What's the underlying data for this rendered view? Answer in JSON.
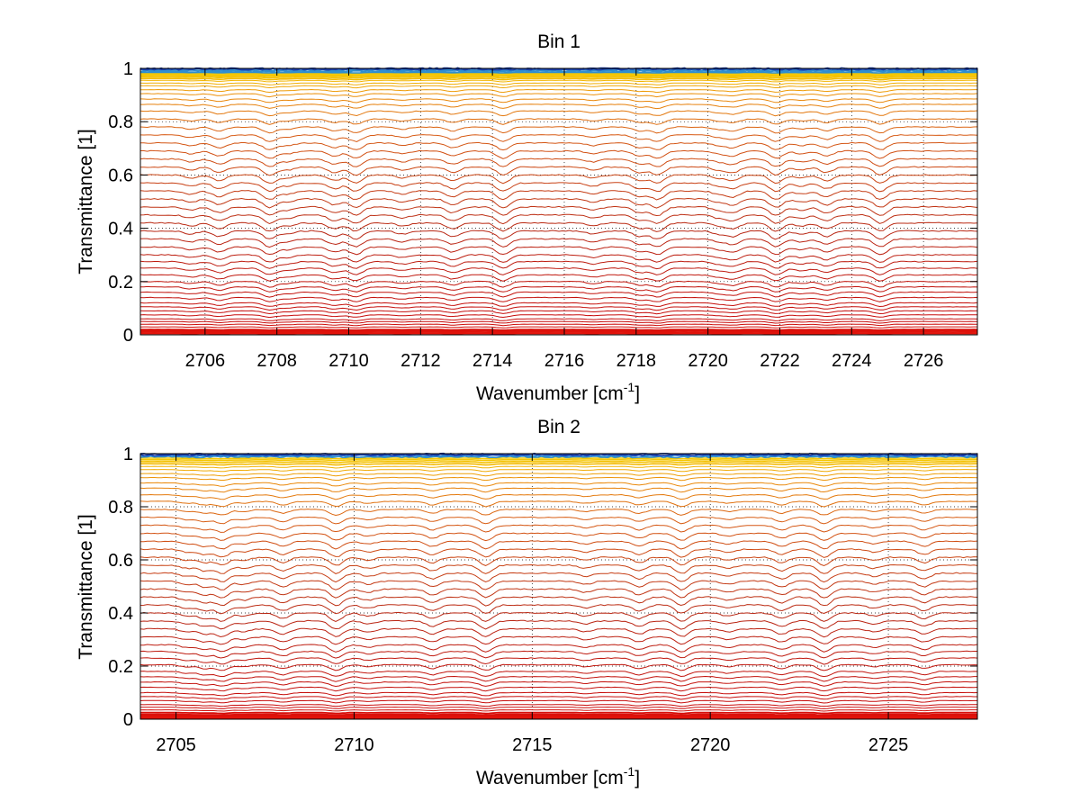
{
  "chart_data": [
    {
      "type": "line",
      "title": "Bin 1",
      "xlabel": "Wavenumber [cm",
      "xlabel_sup": "-1",
      "xlabel_suffix": "]",
      "ylabel": "Transmittance [1]",
      "xlim": [
        2704.2,
        2727.5
      ],
      "ylim": [
        0,
        1
      ],
      "xticks": [
        2706,
        2708,
        2710,
        2712,
        2714,
        2716,
        2718,
        2720,
        2722,
        2724,
        2726
      ],
      "xtick_labels": [
        "2706",
        "2708",
        "2710",
        "2712",
        "2714",
        "2716",
        "2718",
        "2720",
        "2722",
        "2724",
        "2726"
      ],
      "yticks": [
        0,
        0.2,
        0.4,
        0.6,
        0.8,
        1
      ],
      "ytick_labels": [
        "0",
        "0.2",
        "0.4",
        "0.6",
        "0.8",
        "1"
      ],
      "grid": true,
      "series_description": "About 60 transmittance spectra, colormap from red (low transmittance) through orange/yellow to blue (near 1)",
      "series_levels": [
        0.005,
        0.01,
        0.015,
        0.02,
        0.03,
        0.04,
        0.05,
        0.06,
        0.075,
        0.09,
        0.105,
        0.12,
        0.14,
        0.16,
        0.18,
        0.2,
        0.225,
        0.25,
        0.275,
        0.3,
        0.33,
        0.36,
        0.39,
        0.42,
        0.45,
        0.48,
        0.51,
        0.54,
        0.57,
        0.6,
        0.63,
        0.66,
        0.69,
        0.72,
        0.75,
        0.78,
        0.81,
        0.84,
        0.865,
        0.885,
        0.905,
        0.92,
        0.935,
        0.945,
        0.955,
        0.962,
        0.968,
        0.973,
        0.977,
        0.981,
        0.985,
        0.988,
        0.991,
        0.994,
        0.997,
        0.999
      ],
      "absorption_lines": [
        2705.6,
        2706.4,
        2707.8,
        2708.3,
        2709.6,
        2710.2,
        2711.5,
        2712.9,
        2714.3,
        2716.8,
        2718.1,
        2718.6,
        2720.3,
        2720.7,
        2721.9,
        2722.6,
        2723.3,
        2724.8
      ]
    },
    {
      "type": "line",
      "title": "Bin 2",
      "xlabel": "Wavenumber [cm",
      "xlabel_sup": "-1",
      "xlabel_suffix": "]",
      "ylabel": "Transmittance [1]",
      "xlim": [
        2704.0,
        2727.5
      ],
      "ylim": [
        0,
        1
      ],
      "xticks": [
        2705,
        2710,
        2715,
        2720,
        2725
      ],
      "xtick_labels": [
        "2705",
        "2710",
        "2715",
        "2720",
        "2725"
      ],
      "yticks": [
        0,
        0.2,
        0.4,
        0.6,
        0.8,
        1
      ],
      "ytick_labels": [
        "0",
        "0.2",
        "0.4",
        "0.6",
        "0.8",
        "1"
      ],
      "grid": true,
      "series_description": "About 60 transmittance spectra, colormap from red (low transmittance) through orange/yellow to blue (near 1)",
      "series_levels": [
        0.003,
        0.008,
        0.013,
        0.018,
        0.025,
        0.035,
        0.045,
        0.055,
        0.07,
        0.085,
        0.1,
        0.12,
        0.14,
        0.16,
        0.18,
        0.205,
        0.23,
        0.255,
        0.28,
        0.31,
        0.34,
        0.37,
        0.4,
        0.43,
        0.46,
        0.49,
        0.52,
        0.55,
        0.58,
        0.61,
        0.64,
        0.67,
        0.7,
        0.73,
        0.76,
        0.79,
        0.82,
        0.845,
        0.87,
        0.89,
        0.91,
        0.925,
        0.94,
        0.952,
        0.962,
        0.97,
        0.977,
        0.983,
        0.988,
        0.992,
        0.995,
        0.998
      ],
      "absorption_lines": [
        2705.3,
        2705.8,
        2706.3,
        2706.9,
        2708.0,
        2709.5,
        2710.4,
        2712.2,
        2713.7,
        2716.5,
        2718.0,
        2719.2,
        2720.5,
        2722.0,
        2723.2,
        2724.6,
        2726.0
      ]
    }
  ]
}
